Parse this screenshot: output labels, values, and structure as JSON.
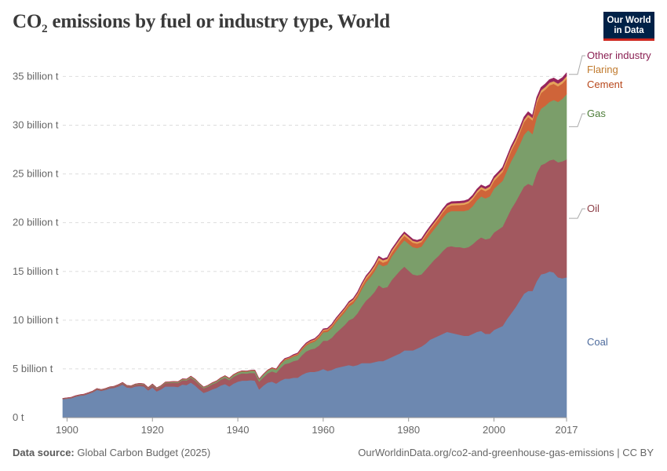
{
  "header": {
    "title_prefix": "CO",
    "title_sub": "2",
    "title_suffix": " emissions by fuel or industry type, World",
    "logo_line1": "Our World",
    "logo_line2": "in Data"
  },
  "footer": {
    "source_label": "Data source:",
    "source_value": "Global Carbon Budget (2025)",
    "url": "OurWorldinData.org/co2-and-greenhouse-gas-emissions | CC BY"
  },
  "chart_data": {
    "type": "area",
    "stacked": true,
    "title": "CO₂ emissions by fuel or industry type, World",
    "ylim": [
      0,
      36000000000
    ],
    "yticks": [
      {
        "value": 0,
        "label": "0 t"
      },
      {
        "value": 5000000000,
        "label": "5 billion t"
      },
      {
        "value": 10000000000,
        "label": "10 billion t"
      },
      {
        "value": 15000000000,
        "label": "15 billion t"
      },
      {
        "value": 20000000000,
        "label": "20 billion t"
      },
      {
        "value": 25000000000,
        "label": "25 billion t"
      },
      {
        "value": 30000000000,
        "label": "30 billion t"
      },
      {
        "value": 35000000000,
        "label": "35 billion t"
      }
    ],
    "xlim": [
      1899,
      2017
    ],
    "xticks": [
      {
        "value": 1900,
        "label": "1900"
      },
      {
        "value": 1920,
        "label": "1920"
      },
      {
        "value": 1940,
        "label": "1940"
      },
      {
        "value": 1960,
        "label": "1960"
      },
      {
        "value": 1980,
        "label": "1980"
      },
      {
        "value": 2000,
        "label": "2000"
      },
      {
        "value": 2017,
        "label": "2017"
      }
    ],
    "grid": true,
    "legend": "right, inline labels",
    "x": [
      1899,
      1900,
      1901,
      1902,
      1903,
      1904,
      1905,
      1906,
      1907,
      1908,
      1909,
      1910,
      1911,
      1912,
      1913,
      1914,
      1915,
      1916,
      1917,
      1918,
      1919,
      1920,
      1921,
      1922,
      1923,
      1924,
      1925,
      1926,
      1927,
      1928,
      1929,
      1930,
      1931,
      1932,
      1933,
      1934,
      1935,
      1936,
      1937,
      1938,
      1939,
      1940,
      1941,
      1942,
      1943,
      1944,
      1945,
      1946,
      1947,
      1948,
      1949,
      1950,
      1951,
      1952,
      1953,
      1954,
      1955,
      1956,
      1957,
      1958,
      1959,
      1960,
      1961,
      1962,
      1963,
      1964,
      1965,
      1966,
      1967,
      1968,
      1969,
      1970,
      1971,
      1972,
      1973,
      1974,
      1975,
      1976,
      1977,
      1978,
      1979,
      1980,
      1981,
      1982,
      1983,
      1984,
      1985,
      1986,
      1987,
      1988,
      1989,
      1990,
      1991,
      1992,
      1993,
      1994,
      1995,
      1996,
      1997,
      1998,
      1999,
      2000,
      2001,
      2002,
      2003,
      2004,
      2005,
      2006,
      2007,
      2008,
      2009,
      2010,
      2011,
      2012,
      2013,
      2014,
      2015,
      2016,
      2017
    ],
    "series": [
      {
        "name": "Coal",
        "color": "#6d88b0",
        "values": [
          1.9,
          1.95,
          2.0,
          2.15,
          2.25,
          2.3,
          2.45,
          2.6,
          2.85,
          2.75,
          2.85,
          3.0,
          3.05,
          3.2,
          3.4,
          3.1,
          3.05,
          3.2,
          3.25,
          3.2,
          2.8,
          3.1,
          2.7,
          2.9,
          3.2,
          3.2,
          3.2,
          3.15,
          3.4,
          3.35,
          3.6,
          3.3,
          2.9,
          2.55,
          2.7,
          2.9,
          3.05,
          3.3,
          3.45,
          3.2,
          3.5,
          3.7,
          3.8,
          3.8,
          3.85,
          3.8,
          2.9,
          3.3,
          3.6,
          3.7,
          3.5,
          3.8,
          4.0,
          4.0,
          4.1,
          4.1,
          4.4,
          4.6,
          4.7,
          4.7,
          4.8,
          5.0,
          4.8,
          4.9,
          5.1,
          5.2,
          5.3,
          5.4,
          5.3,
          5.4,
          5.6,
          5.6,
          5.6,
          5.7,
          5.8,
          5.8,
          6.0,
          6.2,
          6.4,
          6.6,
          6.9,
          6.9,
          6.9,
          7.1,
          7.3,
          7.6,
          8.0,
          8.2,
          8.4,
          8.6,
          8.8,
          8.7,
          8.6,
          8.5,
          8.4,
          8.4,
          8.6,
          8.8,
          8.9,
          8.6,
          8.6,
          9.0,
          9.2,
          9.4,
          10.1,
          10.7,
          11.3,
          12.0,
          12.7,
          13.0,
          13.0,
          14.0,
          14.7,
          14.8,
          15.0,
          14.9,
          14.4,
          14.3,
          14.4
        ]
      },
      {
        "name": "Oil",
        "color": "#a2585f",
        "values": [
          0.05,
          0.05,
          0.06,
          0.07,
          0.07,
          0.08,
          0.08,
          0.09,
          0.1,
          0.1,
          0.11,
          0.12,
          0.13,
          0.14,
          0.15,
          0.15,
          0.16,
          0.18,
          0.2,
          0.2,
          0.22,
          0.27,
          0.28,
          0.3,
          0.35,
          0.37,
          0.4,
          0.42,
          0.45,
          0.47,
          0.5,
          0.5,
          0.48,
          0.46,
          0.48,
          0.52,
          0.55,
          0.6,
          0.65,
          0.65,
          0.7,
          0.72,
          0.75,
          0.72,
          0.74,
          0.78,
          0.8,
          0.85,
          0.95,
          1.05,
          1.1,
          1.3,
          1.5,
          1.6,
          1.7,
          1.8,
          2.0,
          2.2,
          2.3,
          2.4,
          2.6,
          2.9,
          3.1,
          3.3,
          3.6,
          3.9,
          4.2,
          4.6,
          4.9,
          5.3,
          5.8,
          6.4,
          6.8,
          7.2,
          7.8,
          7.5,
          7.4,
          7.9,
          8.2,
          8.5,
          8.6,
          8.2,
          7.8,
          7.5,
          7.4,
          7.6,
          7.7,
          8.0,
          8.2,
          8.5,
          8.7,
          8.9,
          8.9,
          9.0,
          9.0,
          9.1,
          9.2,
          9.4,
          9.6,
          9.7,
          9.8,
          10.0,
          10.1,
          10.2,
          10.4,
          10.7,
          10.8,
          10.9,
          11.0,
          11.0,
          10.8,
          11.1,
          11.2,
          11.3,
          11.4,
          11.6,
          11.8,
          12.0,
          12.1
        ]
      },
      {
        "name": "Gas",
        "color": "#7b9e6a",
        "values": [
          0.02,
          0.02,
          0.02,
          0.02,
          0.02,
          0.02,
          0.02,
          0.03,
          0.03,
          0.03,
          0.03,
          0.03,
          0.03,
          0.03,
          0.04,
          0.04,
          0.04,
          0.05,
          0.05,
          0.05,
          0.05,
          0.06,
          0.06,
          0.06,
          0.07,
          0.08,
          0.08,
          0.09,
          0.1,
          0.1,
          0.12,
          0.12,
          0.11,
          0.1,
          0.11,
          0.12,
          0.13,
          0.14,
          0.16,
          0.16,
          0.17,
          0.18,
          0.2,
          0.2,
          0.22,
          0.24,
          0.24,
          0.26,
          0.28,
          0.3,
          0.32,
          0.36,
          0.4,
          0.43,
          0.46,
          0.5,
          0.55,
          0.6,
          0.65,
          0.7,
          0.78,
          0.85,
          0.9,
          1.0,
          1.1,
          1.2,
          1.3,
          1.4,
          1.5,
          1.6,
          1.75,
          1.9,
          2.0,
          2.1,
          2.2,
          2.25,
          2.3,
          2.4,
          2.5,
          2.6,
          2.7,
          2.75,
          2.8,
          2.8,
          2.85,
          3.0,
          3.1,
          3.15,
          3.3,
          3.4,
          3.5,
          3.6,
          3.7,
          3.7,
          3.8,
          3.8,
          3.9,
          4.1,
          4.2,
          4.2,
          4.3,
          4.5,
          4.6,
          4.7,
          4.8,
          4.9,
          5.0,
          5.1,
          5.3,
          5.5,
          5.3,
          5.7,
          5.8,
          5.9,
          6.0,
          6.1,
          6.2,
          6.4,
          6.7
        ]
      },
      {
        "name": "Cement",
        "color": "#cf6439",
        "values": [
          0.01,
          0.01,
          0.01,
          0.01,
          0.01,
          0.01,
          0.01,
          0.01,
          0.01,
          0.01,
          0.01,
          0.01,
          0.01,
          0.02,
          0.02,
          0.02,
          0.02,
          0.02,
          0.02,
          0.02,
          0.02,
          0.02,
          0.02,
          0.02,
          0.03,
          0.03,
          0.03,
          0.03,
          0.03,
          0.04,
          0.04,
          0.04,
          0.03,
          0.03,
          0.03,
          0.04,
          0.04,
          0.05,
          0.05,
          0.05,
          0.06,
          0.06,
          0.06,
          0.06,
          0.05,
          0.05,
          0.04,
          0.05,
          0.06,
          0.07,
          0.08,
          0.09,
          0.1,
          0.1,
          0.11,
          0.12,
          0.13,
          0.14,
          0.15,
          0.16,
          0.17,
          0.18,
          0.19,
          0.2,
          0.21,
          0.23,
          0.24,
          0.25,
          0.26,
          0.28,
          0.3,
          0.31,
          0.33,
          0.35,
          0.37,
          0.36,
          0.37,
          0.39,
          0.41,
          0.44,
          0.46,
          0.46,
          0.45,
          0.45,
          0.46,
          0.47,
          0.48,
          0.5,
          0.52,
          0.55,
          0.58,
          0.58,
          0.6,
          0.62,
          0.65,
          0.7,
          0.72,
          0.73,
          0.75,
          0.75,
          0.78,
          0.8,
          0.85,
          0.9,
          0.98,
          1.05,
          1.1,
          1.2,
          1.3,
          1.35,
          1.4,
          1.5,
          1.6,
          1.65,
          1.7,
          1.65,
          1.6,
          1.58,
          1.56
        ]
      },
      {
        "name": "Flaring",
        "color": "#e4a25a",
        "values": [
          0,
          0,
          0,
          0,
          0,
          0,
          0,
          0,
          0,
          0,
          0,
          0,
          0,
          0,
          0,
          0,
          0,
          0,
          0,
          0,
          0,
          0,
          0,
          0,
          0,
          0,
          0,
          0,
          0,
          0,
          0,
          0,
          0,
          0,
          0,
          0,
          0,
          0,
          0,
          0,
          0,
          0,
          0,
          0,
          0,
          0,
          0,
          0,
          0,
          0,
          0,
          0.03,
          0.03,
          0.04,
          0.04,
          0.05,
          0.05,
          0.06,
          0.07,
          0.08,
          0.09,
          0.1,
          0.1,
          0.11,
          0.12,
          0.13,
          0.14,
          0.15,
          0.16,
          0.18,
          0.2,
          0.21,
          0.22,
          0.24,
          0.26,
          0.25,
          0.23,
          0.24,
          0.24,
          0.24,
          0.24,
          0.22,
          0.2,
          0.19,
          0.18,
          0.18,
          0.18,
          0.18,
          0.18,
          0.19,
          0.19,
          0.2,
          0.2,
          0.2,
          0.21,
          0.21,
          0.22,
          0.22,
          0.23,
          0.23,
          0.24,
          0.25,
          0.25,
          0.26,
          0.26,
          0.27,
          0.27,
          0.27,
          0.27,
          0.27,
          0.26,
          0.27,
          0.28,
          0.28,
          0.28,
          0.28,
          0.28,
          0.28,
          0.29
        ]
      },
      {
        "name": "Other industry",
        "color": "#97255c",
        "values": [
          0,
          0,
          0,
          0,
          0,
          0,
          0,
          0,
          0,
          0,
          0,
          0,
          0,
          0,
          0,
          0,
          0,
          0,
          0,
          0,
          0,
          0,
          0,
          0,
          0,
          0,
          0,
          0,
          0,
          0,
          0,
          0,
          0,
          0,
          0,
          0,
          0,
          0,
          0,
          0,
          0,
          0,
          0,
          0,
          0,
          0,
          0,
          0,
          0,
          0,
          0,
          0.05,
          0.05,
          0.05,
          0.06,
          0.06,
          0.07,
          0.07,
          0.08,
          0.08,
          0.08,
          0.09,
          0.09,
          0.09,
          0.1,
          0.1,
          0.1,
          0.11,
          0.11,
          0.12,
          0.12,
          0.13,
          0.13,
          0.14,
          0.14,
          0.14,
          0.14,
          0.15,
          0.15,
          0.15,
          0.16,
          0.16,
          0.16,
          0.16,
          0.16,
          0.17,
          0.17,
          0.17,
          0.17,
          0.18,
          0.18,
          0.18,
          0.18,
          0.18,
          0.19,
          0.19,
          0.19,
          0.2,
          0.2,
          0.2,
          0.2,
          0.21,
          0.21,
          0.22,
          0.22,
          0.23,
          0.24,
          0.25,
          0.26,
          0.27,
          0.27,
          0.29,
          0.3,
          0.31,
          0.31,
          0.32,
          0.32,
          0.32,
          0.33
        ]
      }
    ],
    "value_unit_multiplier": 1000000000
  }
}
